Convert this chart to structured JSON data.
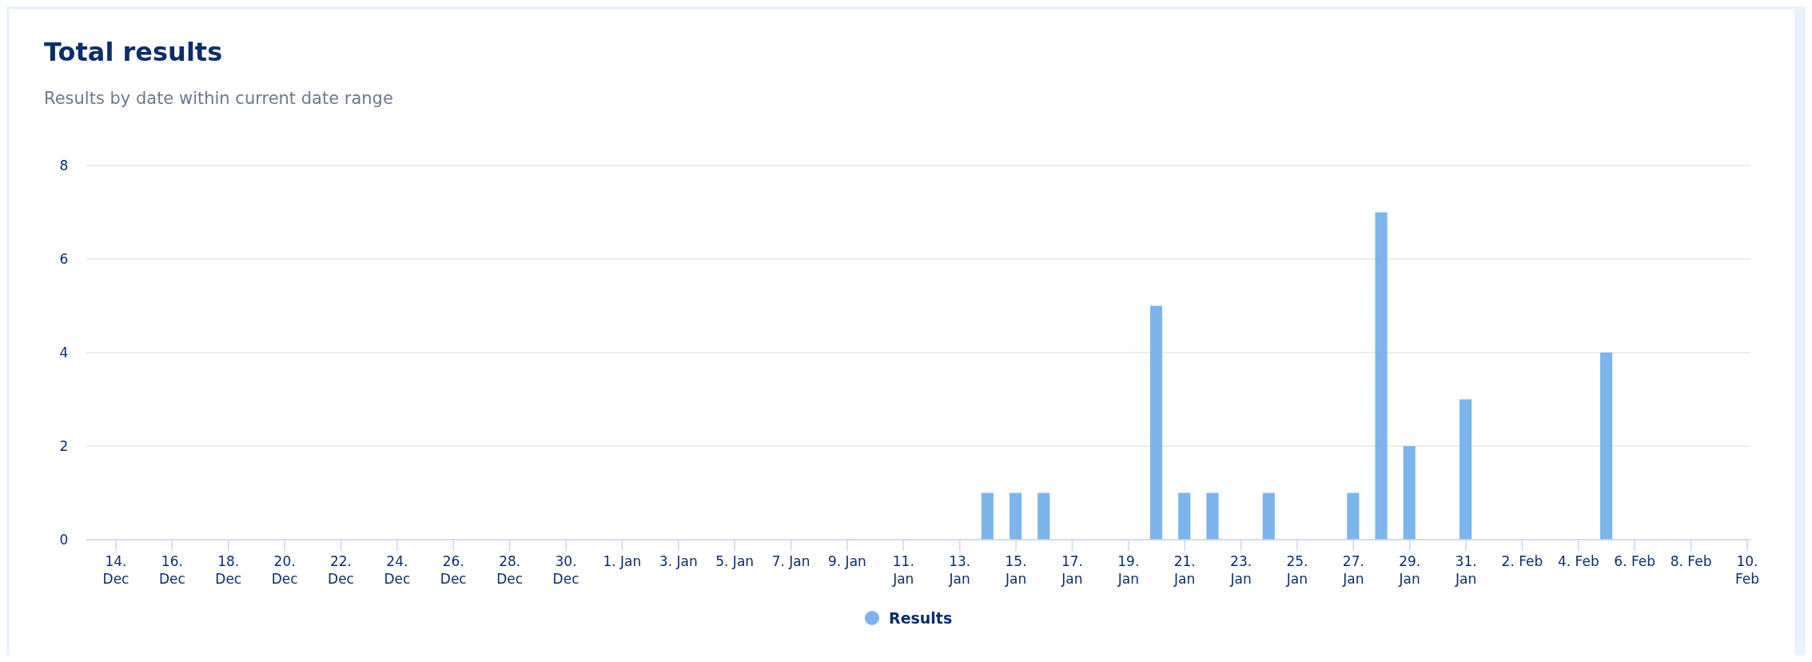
{
  "chart_data": {
    "type": "bar",
    "title": "Total results",
    "subtitle": "Results by date within current date range",
    "categories": [
      "14. Dec",
      null,
      "16. Dec",
      null,
      "18. Dec",
      null,
      "20. Dec",
      null,
      "22. Dec",
      null,
      "24. Dec",
      null,
      "26. Dec",
      null,
      "28. Dec",
      null,
      "30. Dec",
      null,
      "1. Jan",
      null,
      "3. Jan",
      null,
      "5. Jan",
      null,
      "7. Jan",
      null,
      "9. Jan",
      null,
      "11. Jan",
      null,
      "13. Jan",
      null,
      "15. Jan",
      null,
      "17. Jan",
      null,
      "19. Jan",
      null,
      "21. Jan",
      null,
      "23. Jan",
      null,
      "25. Jan",
      null,
      "27. Jan",
      null,
      "29. Jan",
      null,
      "31. Jan",
      null,
      "2. Feb",
      null,
      "4. Feb",
      null,
      "6. Feb",
      null,
      "8. Feb",
      null,
      "10. Feb"
    ],
    "series": [
      {
        "name": "Results",
        "color": "#7cb5ec",
        "values": [
          0,
          0,
          0,
          0,
          0,
          0,
          0,
          0,
          0,
          0,
          0,
          0,
          0,
          0,
          0,
          0,
          0,
          0,
          0,
          0,
          0,
          0,
          0,
          0,
          0,
          0,
          0,
          0,
          0,
          0,
          0,
          1,
          1,
          1,
          0,
          0,
          0,
          5,
          1,
          1,
          0,
          1,
          0,
          0,
          1,
          7,
          2,
          0,
          3,
          0,
          0,
          0,
          0,
          4,
          0,
          0,
          0,
          0,
          0
        ]
      }
    ],
    "ylim": [
      0,
      8
    ],
    "yticks": [
      0,
      2,
      4,
      6,
      8
    ],
    "grid": "y",
    "legend": "bottom"
  }
}
